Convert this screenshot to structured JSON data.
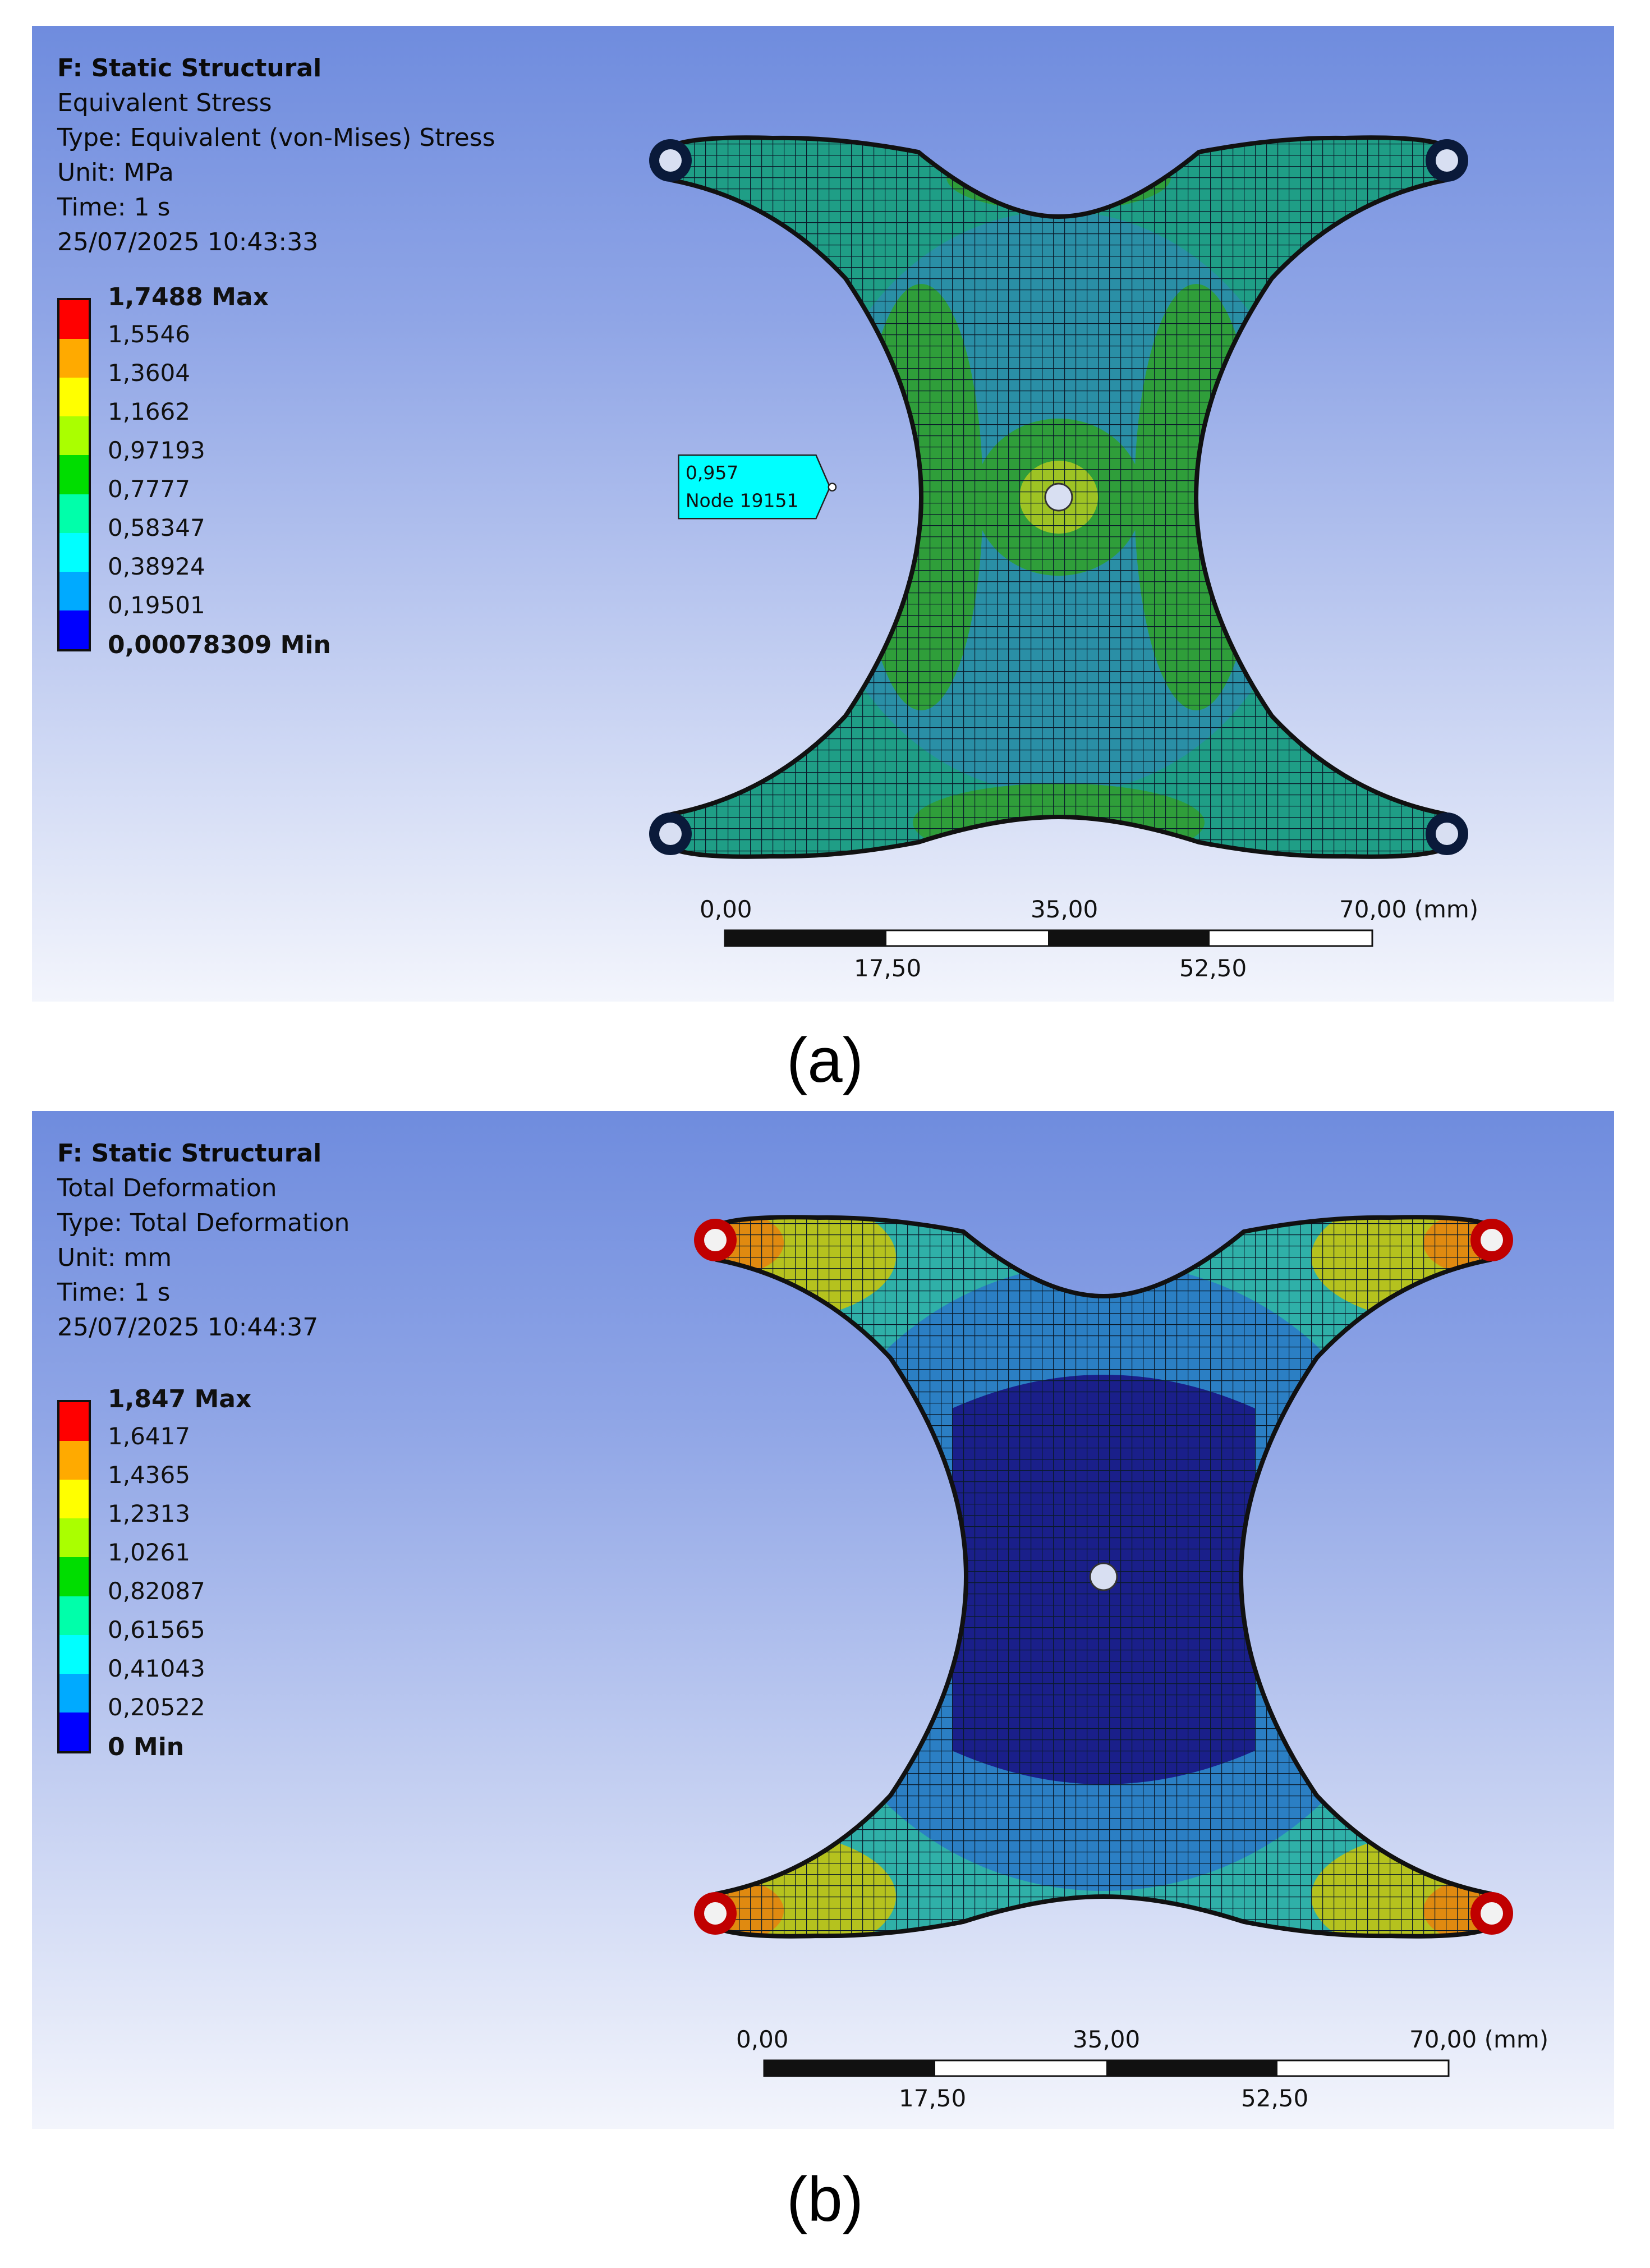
{
  "panel_a": {
    "info": {
      "title": "F: Static Structural",
      "result": "Equivalent Stress",
      "type": "Type: Equivalent (von-Mises) Stress",
      "unit": "Unit: MPa",
      "time": "Time: 1 s",
      "timestamp": "25/07/2025 10:43:33"
    },
    "legend": {
      "max": "1,7488 Max",
      "levels": [
        "1,5546",
        "1,3604",
        "1,1662",
        "0,97193",
        "0,7777",
        "0,58347",
        "0,38924",
        "0,19501"
      ],
      "min": "0,00078309 Min"
    },
    "probe": {
      "value": "0,957",
      "node": "Node 19151"
    },
    "scale": {
      "top": [
        "0,00",
        "35,00",
        "70,00 (mm)"
      ],
      "bottom": [
        "17,50",
        "52,50"
      ]
    },
    "caption": "(a)"
  },
  "panel_b": {
    "info": {
      "title": "F: Static Structural",
      "result": "Total Deformation",
      "type": "Type: Total Deformation",
      "unit": "Unit: mm",
      "time": "Time: 1 s",
      "timestamp": "25/07/2025 10:44:37"
    },
    "legend": {
      "max": "1,847 Max",
      "levels": [
        "1,6417",
        "1,4365",
        "1,2313",
        "1,0261",
        "0,82087",
        "0,61565",
        "0,41043",
        "0,20522"
      ],
      "min": "0 Min"
    },
    "scale": {
      "top": [
        "0,00",
        "35,00",
        "70,00 (mm)"
      ],
      "bottom": [
        "17,50",
        "52,50"
      ]
    },
    "caption": "(b)"
  },
  "legend_colors": [
    "#ff0000",
    "#ffaa00",
    "#ffff00",
    "#aaff00",
    "#00dd00",
    "#00ffaa",
    "#00ffff",
    "#00aaff",
    "#0000ff"
  ],
  "colors": {
    "probe_fill": "#00ffff",
    "mesh_line": "#0a1a2a",
    "stress_body": "#1f9e86",
    "deformation_center": "#1a1f8a"
  }
}
